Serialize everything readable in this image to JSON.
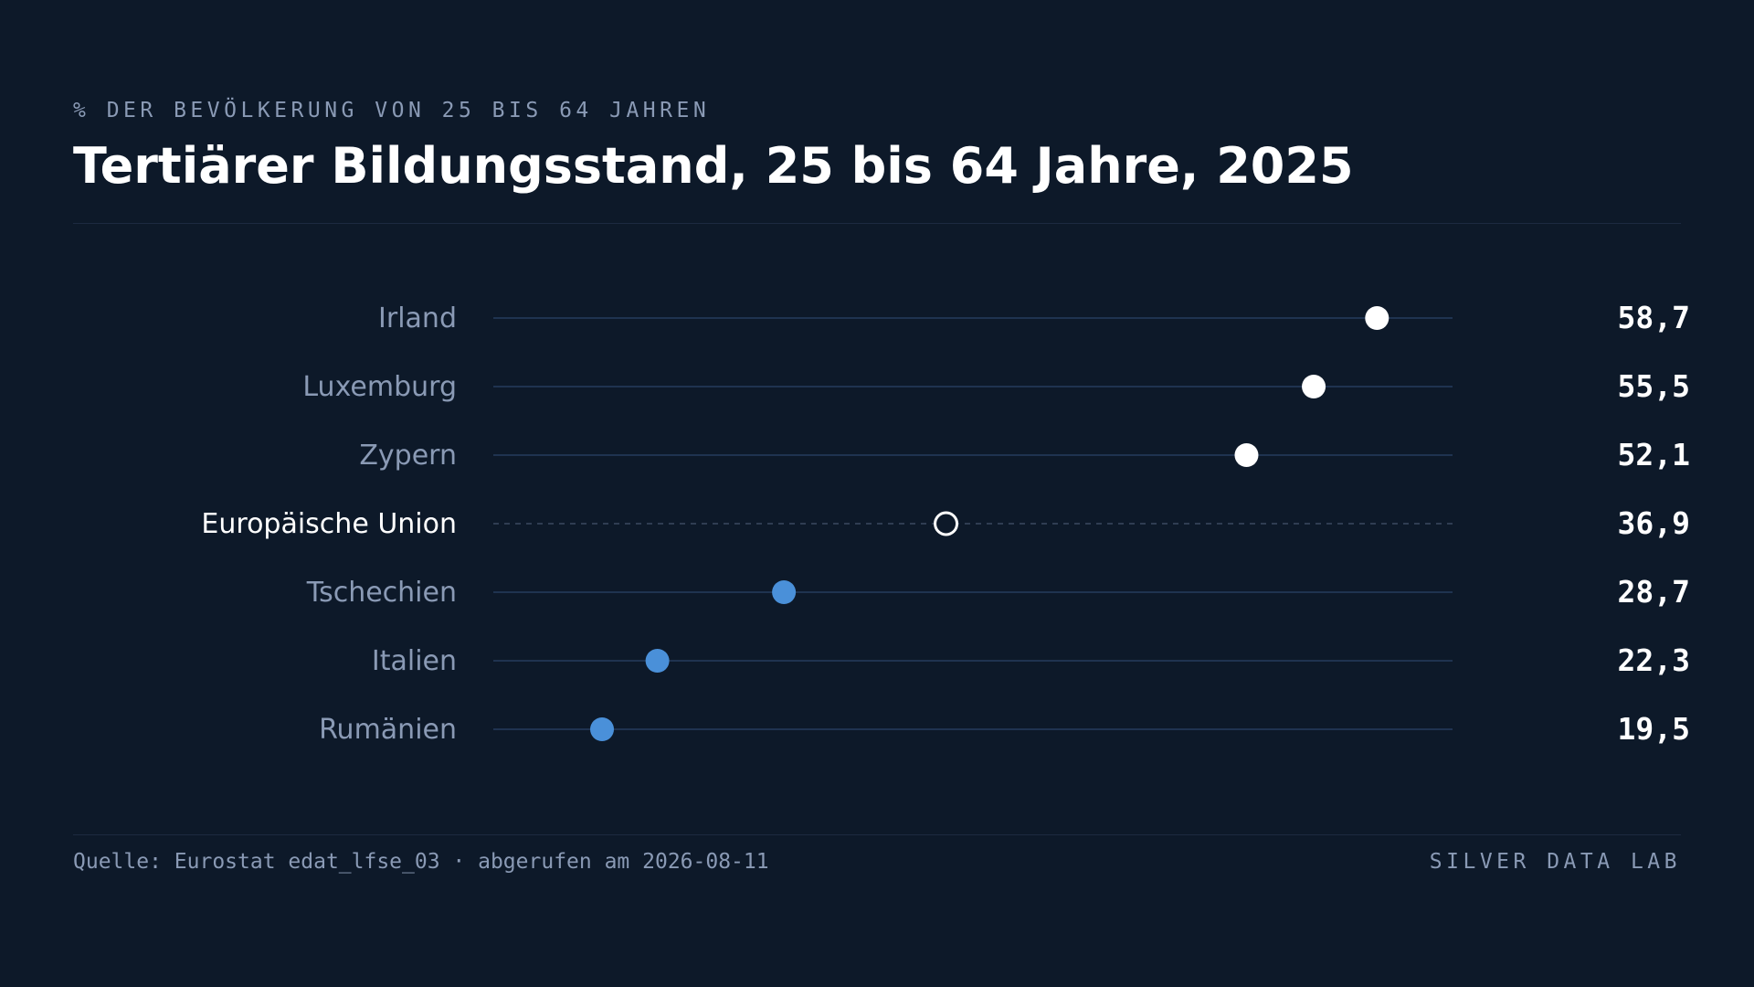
{
  "header": {
    "kicker": "% DER BEVÖLKERUNG VON 25 BIS 64 JAHREN",
    "title": "Tertiärer Bildungsstand, 25 bis 64 Jahre, 2025"
  },
  "chart_data": {
    "type": "scatter",
    "subtype": "dot-plot",
    "title": "Tertiärer Bildungsstand, 25 bis 64 Jahre, 2025",
    "unit": "% der Bevölkerung von 25 bis 64 Jahren",
    "xlim": [
      14,
      64
    ],
    "grid": false,
    "legend": "none",
    "categories": [
      "Irland",
      "Luxemburg",
      "Zypern",
      "Europäische Union",
      "Tschechien",
      "Italien",
      "Rumänien"
    ],
    "values": [
      58.7,
      55.5,
      52.1,
      36.9,
      28.7,
      22.3,
      19.5
    ],
    "value_labels": [
      "58,7",
      "55,5",
      "52,1",
      "36,9",
      "28,7",
      "22,3",
      "19,5"
    ],
    "reference_category": "Europäische Union",
    "colors": {
      "high": "#ffffff",
      "low": "#4a90d9",
      "reference": "#ffffff",
      "background": "#0d1929"
    }
  },
  "footer": {
    "source": "Quelle: Eurostat edat_lfse_03 · abgerufen am 2026-08-11",
    "brand": "SILVER DATA LAB"
  }
}
